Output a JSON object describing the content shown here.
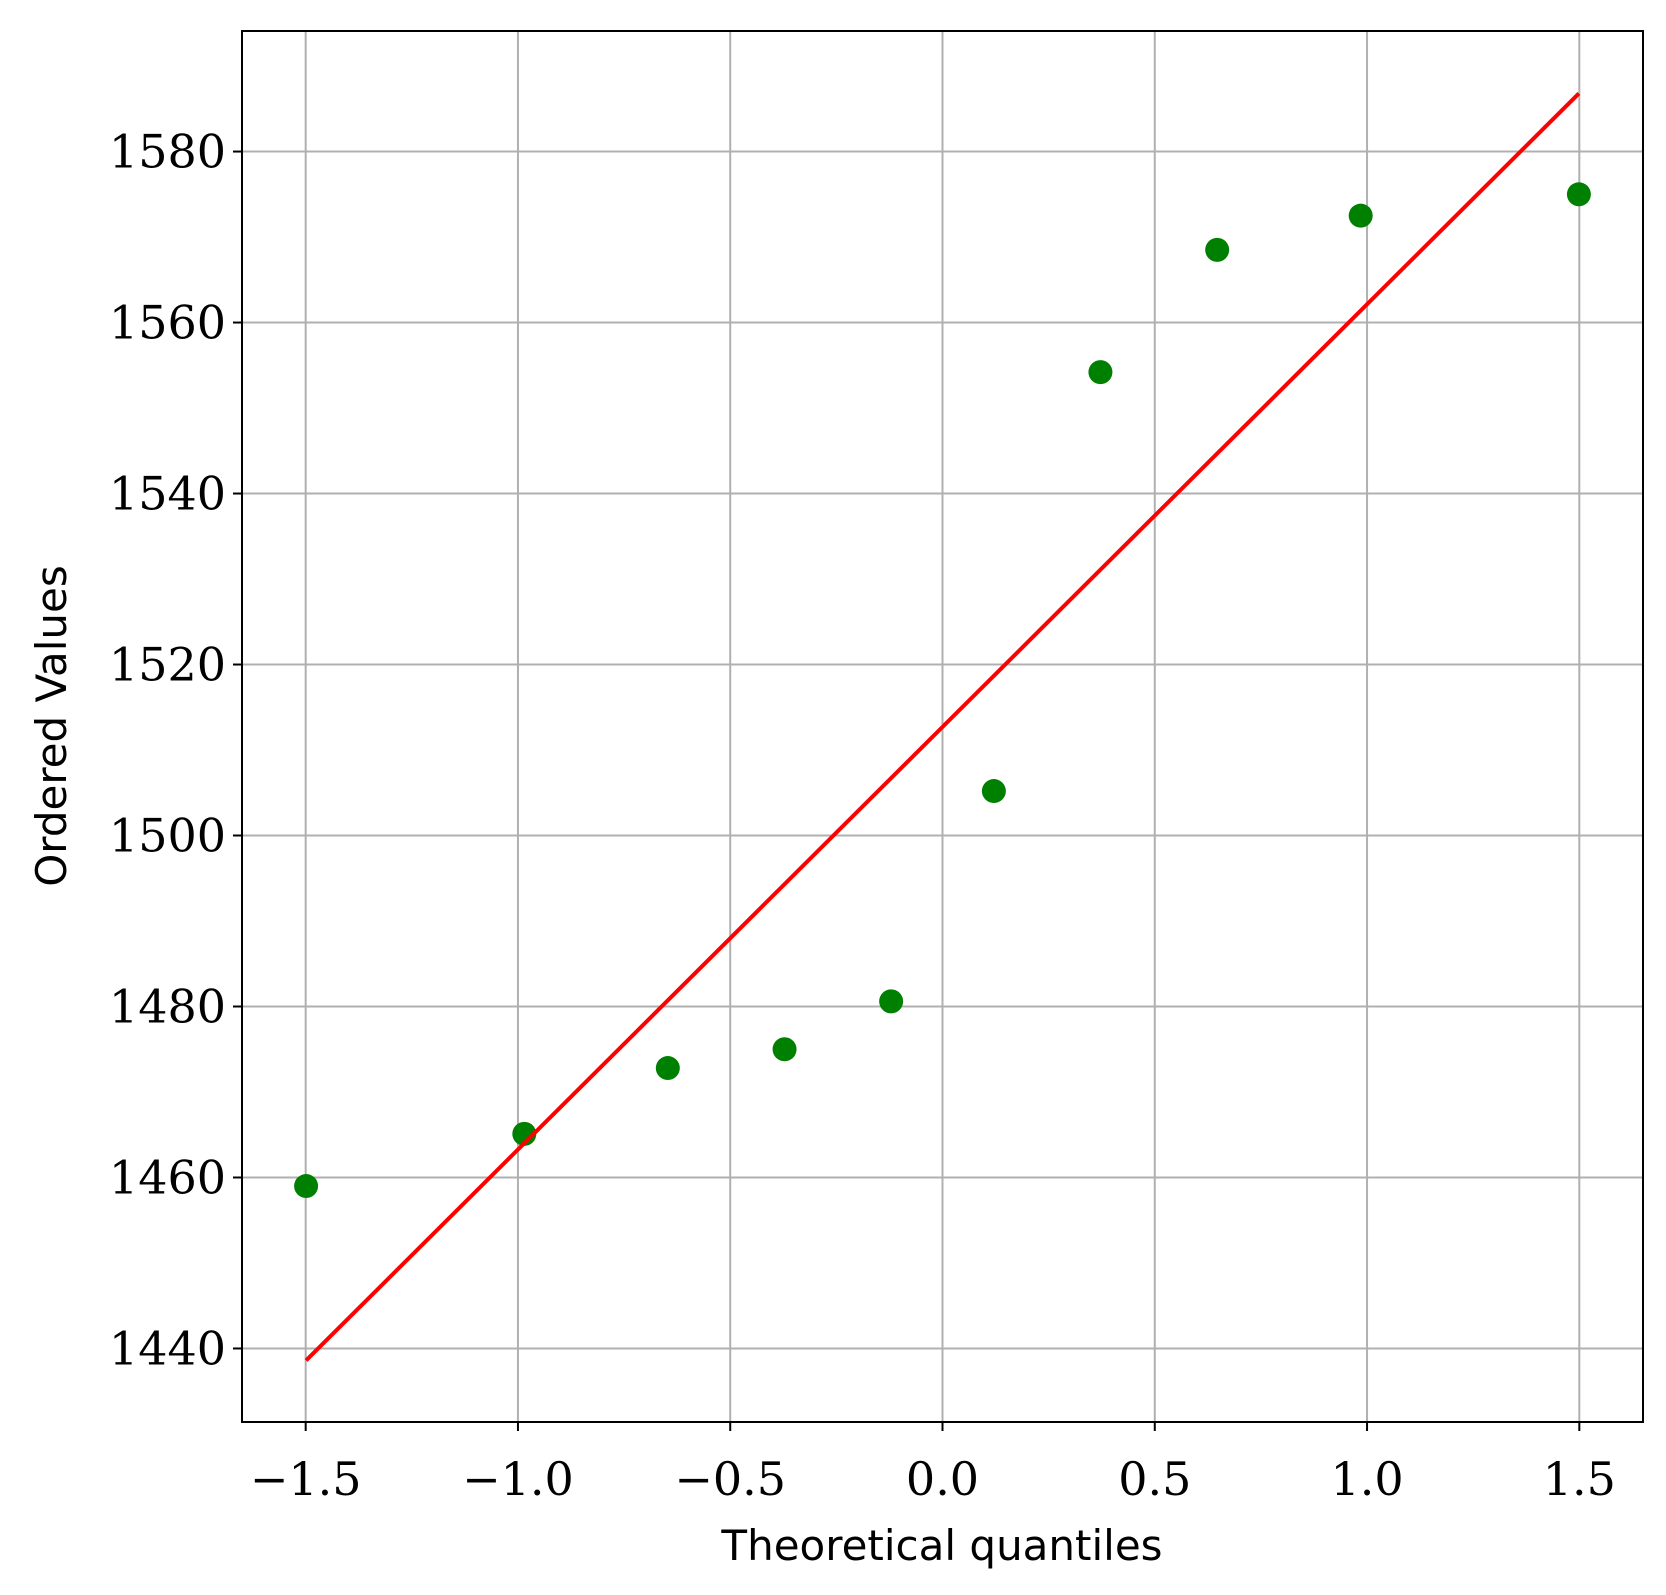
{
  "chart_data": {
    "type": "scatter",
    "xlabel": "Theoretical quantiles",
    "ylabel": "Ordered Values",
    "xlim": [
      -1.65,
      1.65
    ],
    "ylim": [
      1431.4,
      1594.1
    ],
    "xticks": [
      {
        "value": -1.5,
        "label": "−1.5"
      },
      {
        "value": -1.0,
        "label": "−1.0"
      },
      {
        "value": -0.5,
        "label": "−0.5"
      },
      {
        "value": 0,
        "label": "0.0"
      },
      0.5,
      {
        "value": 1.0,
        "label": "1.0"
      },
      1.5
    ],
    "yticks": [
      1440,
      1460,
      1480,
      1500,
      1520,
      1540,
      1560,
      1580
    ],
    "grid": true,
    "series": [
      {
        "color": "#008000",
        "marker": "circle",
        "x": [
          -1.499,
          -0.985,
          -0.647,
          -0.372,
          -0.121,
          0.121,
          0.372,
          0.647,
          0.985,
          1.499
        ],
        "values": [
          1459.0,
          1465.1,
          1472.8,
          1475.0,
          1480.6,
          1505.2,
          1554.2,
          1568.5,
          1572.5,
          1575.0
        ]
      },
      {
        "color": "#ff0000",
        "marker": "line",
        "x": [
          -1.499,
          1.499
        ],
        "values": [
          1438.6,
          1586.8
        ]
      }
    ]
  }
}
